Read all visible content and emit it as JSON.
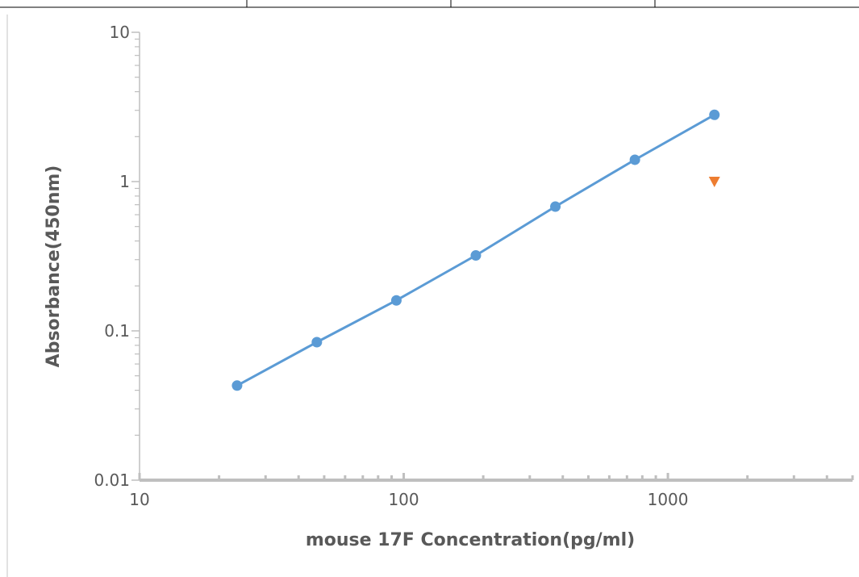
{
  "chart_data": {
    "type": "scatter",
    "title": "",
    "xlabel": "mouse 17F Concentration(pg/ml)",
    "ylabel": "Absorbance(450nm)",
    "x_scale": "log",
    "y_scale": "log",
    "xlim": [
      10,
      5000
    ],
    "ylim": [
      0.01,
      10
    ],
    "x_ticks": [
      "10",
      "100",
      "1000"
    ],
    "y_ticks": [
      "0.01",
      "0.1",
      "1",
      "10"
    ],
    "grid": false,
    "series": [
      {
        "color": "#5b9bd5",
        "marker": "circle",
        "line": true,
        "x": [
          23.4,
          46.9,
          93.8,
          187.5,
          375,
          750,
          1500
        ],
        "y": [
          0.043,
          0.084,
          0.16,
          0.32,
          0.68,
          1.4,
          2.8
        ]
      },
      {
        "color": "#ed7d31",
        "marker": "triangle-down",
        "line": false,
        "x": [
          1500
        ],
        "y": [
          1.0
        ]
      }
    ]
  }
}
